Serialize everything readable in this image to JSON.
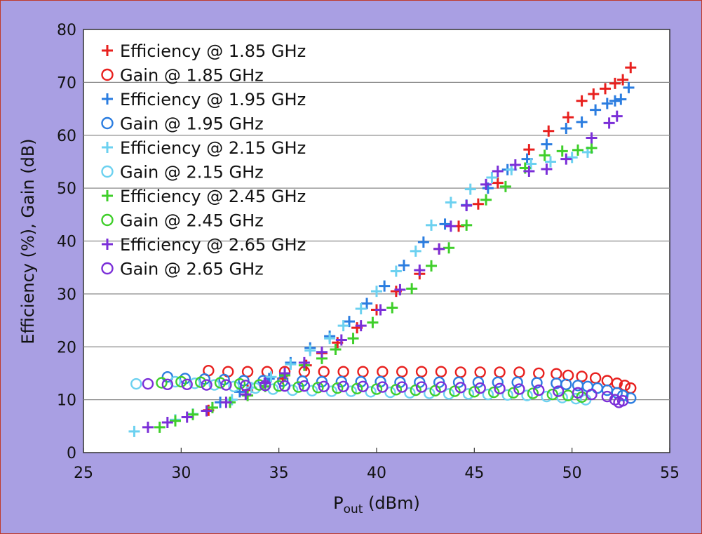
{
  "chart_data": {
    "type": "scatter",
    "title": "",
    "xlabel": {
      "main": "P",
      "sub": "out",
      "rest": " (dBm)"
    },
    "ylabel": "Efficiency (%), Gain (dB)",
    "xlim": [
      25,
      55
    ],
    "ylim": [
      0,
      80
    ],
    "xticks": [
      25,
      30,
      35,
      40,
      45,
      50,
      55
    ],
    "yticks": [
      0,
      10,
      20,
      30,
      40,
      50,
      60,
      70,
      80
    ],
    "grid": "horizontal",
    "legend_position": "top-left",
    "series": [
      {
        "name": "Efficiency @ 1.85 GHz",
        "marker": "plus",
        "color": "#e8201e",
        "points": [
          [
            31.4,
            8
          ],
          [
            33.4,
            11.8
          ],
          [
            35.2,
            14
          ],
          [
            36.4,
            16.5
          ],
          [
            37.2,
            18.8
          ],
          [
            38,
            20.8
          ],
          [
            39,
            23.6
          ],
          [
            40,
            27
          ],
          [
            41,
            30.5
          ],
          [
            42.2,
            33.8
          ],
          [
            43.2,
            38.5
          ],
          [
            44.2,
            42.8
          ],
          [
            45.2,
            47
          ],
          [
            46.2,
            51
          ],
          [
            47.8,
            57.3
          ],
          [
            48.8,
            60.8
          ],
          [
            49.8,
            63.4
          ],
          [
            50.5,
            66.5
          ],
          [
            51.1,
            67.8
          ],
          [
            51.7,
            68.8
          ],
          [
            52.2,
            69.8
          ],
          [
            52.6,
            70.5
          ],
          [
            53,
            72.8
          ]
        ]
      },
      {
        "name": "Gain @ 1.85 GHz",
        "marker": "circle",
        "color": "#e8201e",
        "points": [
          [
            31.4,
            15.5
          ],
          [
            32.4,
            15.3
          ],
          [
            33.4,
            15.3
          ],
          [
            34.4,
            15.3
          ],
          [
            35.3,
            15.3
          ],
          [
            36.3,
            15.3
          ],
          [
            37.3,
            15.3
          ],
          [
            38.3,
            15.3
          ],
          [
            39.3,
            15.3
          ],
          [
            40.3,
            15.3
          ],
          [
            41.3,
            15.3
          ],
          [
            42.3,
            15.3
          ],
          [
            43.3,
            15.3
          ],
          [
            44.3,
            15.2
          ],
          [
            45.3,
            15.2
          ],
          [
            46.3,
            15.2
          ],
          [
            47.3,
            15.2
          ],
          [
            48.3,
            15
          ],
          [
            49.2,
            14.9
          ],
          [
            49.8,
            14.6
          ],
          [
            50.5,
            14.4
          ],
          [
            51.2,
            14.1
          ],
          [
            51.8,
            13.6
          ],
          [
            52.3,
            13.1
          ],
          [
            52.7,
            12.7
          ],
          [
            53,
            12.2
          ]
        ]
      },
      {
        "name": "Efficiency @ 1.95 GHz",
        "marker": "plus",
        "color": "#2b7de0",
        "points": [
          [
            32,
            9.5
          ],
          [
            33,
            11.5
          ],
          [
            34.5,
            14
          ],
          [
            35.6,
            17
          ],
          [
            36.6,
            19.8
          ],
          [
            37.6,
            22
          ],
          [
            38.6,
            24.8
          ],
          [
            39.5,
            28.2
          ],
          [
            40.4,
            31.5
          ],
          [
            41.4,
            35.4
          ],
          [
            42.4,
            39.8
          ],
          [
            43.5,
            43.2
          ],
          [
            44.6,
            46.8
          ],
          [
            45.7,
            50
          ],
          [
            46.7,
            53.5
          ],
          [
            47.7,
            55.5
          ],
          [
            48.7,
            58.3
          ],
          [
            49.7,
            61.3
          ],
          [
            50.5,
            62.5
          ],
          [
            51.2,
            64.8
          ],
          [
            51.8,
            66
          ],
          [
            52.2,
            66.5
          ],
          [
            52.5,
            66.8
          ],
          [
            52.9,
            69
          ]
        ]
      },
      {
        "name": "Gain @ 1.95 GHz",
        "marker": "circle",
        "color": "#2b7de0",
        "points": [
          [
            29.3,
            14.3
          ],
          [
            30.2,
            14
          ],
          [
            31.2,
            13.9
          ],
          [
            32.2,
            13.8
          ],
          [
            33.2,
            13.6
          ],
          [
            34.2,
            13.6
          ],
          [
            35.2,
            13.5
          ],
          [
            36.2,
            13.5
          ],
          [
            37.2,
            13.4
          ],
          [
            38.2,
            13.4
          ],
          [
            39.2,
            13.4
          ],
          [
            40.2,
            13.4
          ],
          [
            41.2,
            13.3
          ],
          [
            42.2,
            13.3
          ],
          [
            43.2,
            13.3
          ],
          [
            44.2,
            13.3
          ],
          [
            45.2,
            13.3
          ],
          [
            46.2,
            13.3
          ],
          [
            47.2,
            13.3
          ],
          [
            48.2,
            13.2
          ],
          [
            49.2,
            13.1
          ],
          [
            49.7,
            12.9
          ],
          [
            50.3,
            12.7
          ],
          [
            50.8,
            12.5
          ],
          [
            51.3,
            12.2
          ],
          [
            51.8,
            11.8
          ],
          [
            52.3,
            11.3
          ],
          [
            52.6,
            10.8
          ],
          [
            53,
            10.3
          ]
        ]
      },
      {
        "name": "Efficiency @ 2.15 GHz",
        "marker": "plus",
        "color": "#6cd1f0",
        "points": [
          [
            27.6,
            4
          ],
          [
            29.7,
            6.2
          ],
          [
            30.6,
            7.3
          ],
          [
            31.6,
            8.5
          ],
          [
            32.6,
            10
          ],
          [
            33.6,
            12.3
          ],
          [
            34.6,
            14.3
          ],
          [
            35.6,
            16.7
          ],
          [
            36.6,
            19.3
          ],
          [
            37.6,
            21.6
          ],
          [
            38.3,
            24
          ],
          [
            39.2,
            27.2
          ],
          [
            40,
            30.5
          ],
          [
            41,
            34.3
          ],
          [
            42,
            38.1
          ],
          [
            42.8,
            43
          ],
          [
            43.8,
            47.3
          ],
          [
            44.8,
            49.8
          ],
          [
            45.9,
            52
          ],
          [
            46.9,
            53.5
          ],
          [
            47.9,
            54.6
          ],
          [
            48.9,
            55
          ],
          [
            50,
            55.8
          ],
          [
            50.8,
            56.8
          ]
        ]
      },
      {
        "name": "Gain @ 2.15 GHz",
        "marker": "circle",
        "color": "#6cd1f0",
        "points": [
          [
            27.7,
            13
          ],
          [
            29.7,
            13.4
          ],
          [
            30.7,
            13.1
          ],
          [
            31.7,
            12.8
          ],
          [
            32.7,
            12.5
          ],
          [
            33.8,
            12.2
          ],
          [
            34.7,
            12
          ],
          [
            35.7,
            11.8
          ],
          [
            36.7,
            11.7
          ],
          [
            37.7,
            11.6
          ],
          [
            38.7,
            11.6
          ],
          [
            39.7,
            11.5
          ],
          [
            40.7,
            11.4
          ],
          [
            41.7,
            11.3
          ],
          [
            42.7,
            11.2
          ],
          [
            43.7,
            11.1
          ],
          [
            44.7,
            11.1
          ],
          [
            45.7,
            11
          ],
          [
            46.7,
            10.9
          ],
          [
            47.7,
            10.8
          ],
          [
            48.7,
            10.6
          ],
          [
            49.5,
            10.4
          ],
          [
            50.2,
            10.2
          ],
          [
            50.7,
            10
          ]
        ]
      },
      {
        "name": "Efficiency @ 2.45 GHz",
        "marker": "plus",
        "color": "#3fcf2a",
        "points": [
          [
            28.9,
            4.8
          ],
          [
            29.7,
            6
          ],
          [
            30.6,
            7.2
          ],
          [
            31.6,
            8.5
          ],
          [
            32.5,
            9.5
          ],
          [
            33.4,
            10.8
          ],
          [
            34.3,
            12.5
          ],
          [
            35.3,
            14.6
          ],
          [
            36.3,
            16.5
          ],
          [
            37.2,
            17.8
          ],
          [
            37.9,
            19.5
          ],
          [
            38.8,
            21.6
          ],
          [
            39.8,
            24.6
          ],
          [
            40.8,
            27.4
          ],
          [
            41.8,
            31
          ],
          [
            42.8,
            35.3
          ],
          [
            43.7,
            38.7
          ],
          [
            44.6,
            43
          ],
          [
            45.6,
            47.8
          ],
          [
            46.6,
            50.3
          ],
          [
            47.6,
            53.8
          ],
          [
            48.6,
            56.2
          ],
          [
            49.5,
            57
          ],
          [
            50.3,
            57.2
          ],
          [
            51,
            57.6
          ]
        ]
      },
      {
        "name": "Gain @ 2.45 GHz",
        "marker": "circle",
        "color": "#3fcf2a",
        "points": [
          [
            29,
            13.2
          ],
          [
            30,
            13.4
          ],
          [
            31,
            13.3
          ],
          [
            32,
            13.2
          ],
          [
            33,
            13
          ],
          [
            34,
            12.8
          ],
          [
            35,
            12.6
          ],
          [
            36,
            12.4
          ],
          [
            37,
            12.3
          ],
          [
            38,
            12.2
          ],
          [
            39,
            12.1
          ],
          [
            40,
            12
          ],
          [
            41,
            11.9
          ],
          [
            42,
            11.8
          ],
          [
            43,
            11.7
          ],
          [
            44,
            11.6
          ],
          [
            45,
            11.5
          ],
          [
            46,
            11.4
          ],
          [
            47,
            11.3
          ],
          [
            48,
            11.2
          ],
          [
            49,
            11
          ],
          [
            49.8,
            10.8
          ],
          [
            50.5,
            10.5
          ]
        ]
      },
      {
        "name": "Efficiency @ 2.65 GHz",
        "marker": "plus",
        "color": "#7b2fd8",
        "points": [
          [
            28.3,
            4.8
          ],
          [
            29.3,
            5.7
          ],
          [
            30.3,
            6.7
          ],
          [
            31.3,
            7.9
          ],
          [
            32.3,
            9.5
          ],
          [
            33.3,
            11
          ],
          [
            34.3,
            13.2
          ],
          [
            35.3,
            15
          ],
          [
            36.3,
            17
          ],
          [
            37.2,
            19
          ],
          [
            38.2,
            21.3
          ],
          [
            39.2,
            24
          ],
          [
            40.2,
            27
          ],
          [
            41.2,
            30.8
          ],
          [
            42.2,
            34.5
          ],
          [
            43.2,
            38.5
          ],
          [
            43.8,
            42.8
          ],
          [
            44.6,
            46.7
          ],
          [
            45.6,
            50.7
          ],
          [
            46.2,
            53.2
          ],
          [
            47.1,
            54.4
          ],
          [
            47.8,
            53.2
          ],
          [
            48.7,
            53.6
          ],
          [
            49.7,
            55.5
          ],
          [
            51,
            59.5
          ],
          [
            51.9,
            62.3
          ],
          [
            52.3,
            63.6
          ]
        ]
      },
      {
        "name": "Gain @ 2.65 GHz",
        "marker": "circle",
        "color": "#7b2fd8",
        "points": [
          [
            28.3,
            13
          ],
          [
            29.3,
            12.9
          ],
          [
            30.3,
            12.9
          ],
          [
            31.3,
            12.8
          ],
          [
            32.3,
            12.8
          ],
          [
            33.3,
            12.7
          ],
          [
            34.3,
            12.7
          ],
          [
            35.3,
            12.6
          ],
          [
            36.3,
            12.6
          ],
          [
            37.3,
            12.5
          ],
          [
            38.3,
            12.5
          ],
          [
            39.3,
            12.5
          ],
          [
            40.3,
            12.4
          ],
          [
            41.3,
            12.4
          ],
          [
            42.3,
            12.4
          ],
          [
            43.3,
            12.4
          ],
          [
            44.3,
            12.3
          ],
          [
            45.3,
            12.2
          ],
          [
            46.3,
            12.1
          ],
          [
            47.3,
            12
          ],
          [
            48.3,
            11.8
          ],
          [
            49.3,
            11.6
          ],
          [
            50.3,
            11.3
          ],
          [
            51,
            11
          ],
          [
            51.8,
            10.6
          ],
          [
            52.2,
            10
          ],
          [
            52.4,
            9.5
          ],
          [
            52.6,
            9.8
          ]
        ]
      }
    ]
  }
}
